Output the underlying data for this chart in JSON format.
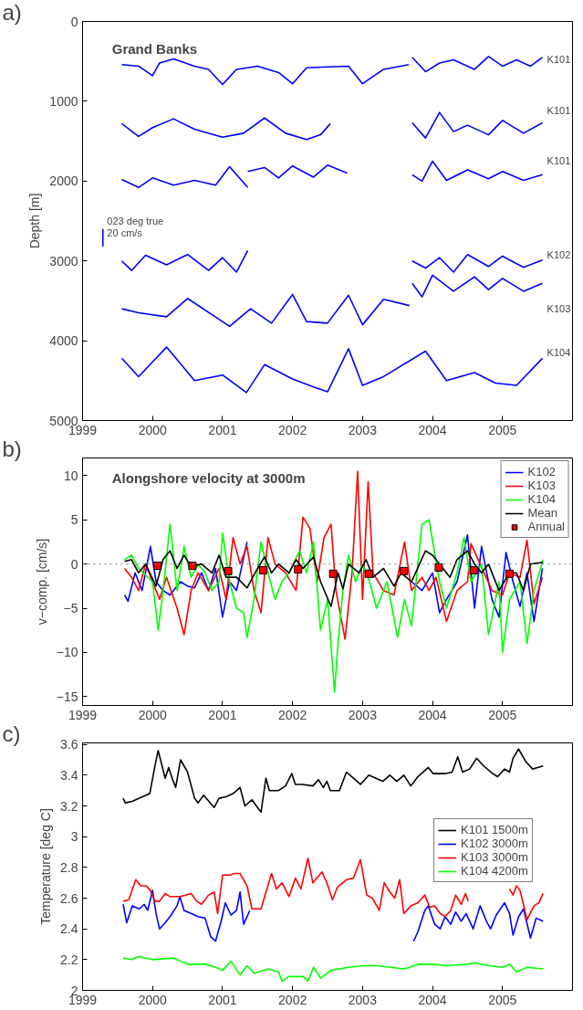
{
  "chart_data": [
    {
      "type": "line",
      "title": "Grand Banks",
      "ylabel": "Depth [m]",
      "xlim": [
        1999,
        2006
      ],
      "ylim": [
        5000,
        0
      ],
      "xticks": [
        1999,
        2000,
        2001,
        2002,
        2003,
        2004,
        2005
      ],
      "yticks": [
        0,
        1000,
        2000,
        3000,
        4000,
        5000
      ],
      "grid": false,
      "annotations": [
        "a)",
        "K101",
        "K101",
        "K101",
        "K102",
        "K103",
        "K104",
        "023 deg true",
        "20 cm/s"
      ],
      "series": [
        {
          "color": "#0000ff",
          "x": [
            1999.56,
            1999.8,
            2000.0,
            2000.1,
            2000.3,
            2000.6,
            2000.8,
            2001.0,
            2001.2,
            2001.5,
            2001.8,
            2002.0,
            2002.2,
            2002.5,
            2002.8,
            2003.0,
            2003.3,
            2003.66
          ],
          "values": [
            540,
            560,
            680,
            520,
            470,
            560,
            600,
            790,
            600,
            560,
            640,
            780,
            580,
            570,
            560,
            780,
            600,
            540
          ]
        },
        {
          "color": "#0000ff",
          "x": [
            2003.71,
            2003.9,
            2004.1,
            2004.3,
            2004.6,
            2004.8,
            2005.0,
            2005.2,
            2005.4,
            2005.57
          ],
          "values": [
            450,
            630,
            520,
            480,
            600,
            440,
            560,
            480,
            560,
            450
          ]
        },
        {
          "color": "#0000ff",
          "x": [
            1999.56,
            1999.8,
            2000.0,
            2000.3,
            2000.6,
            2001.0,
            2001.3,
            2001.6,
            2001.9,
            2002.2,
            2002.4,
            2002.54
          ],
          "values": [
            1280,
            1440,
            1330,
            1220,
            1350,
            1450,
            1400,
            1210,
            1400,
            1480,
            1420,
            1280
          ]
        },
        {
          "color": "#0000ff",
          "x": [
            2003.71,
            2003.9,
            2004.1,
            2004.3,
            2004.5,
            2004.8,
            2005.0,
            2005.3,
            2005.57
          ],
          "values": [
            1270,
            1460,
            1140,
            1380,
            1300,
            1420,
            1240,
            1400,
            1270
          ]
        },
        {
          "color": "#0000ff",
          "x": [
            1999.56,
            1999.8,
            2000.0,
            2000.3,
            2000.6,
            2000.9,
            2001.1,
            2001.36
          ],
          "values": [
            1980,
            2080,
            1960,
            2050,
            1990,
            2050,
            1820,
            2080
          ]
        },
        {
          "color": "#0000ff",
          "x": [
            2001.36,
            2001.6,
            2001.8,
            2002.0,
            2002.3,
            2002.5,
            2002.78
          ],
          "values": [
            1880,
            1830,
            1960,
            1810,
            1950,
            1800,
            1900
          ]
        },
        {
          "color": "#0000ff",
          "x": [
            2003.71,
            2003.85,
            2004.0,
            2004.2,
            2004.5,
            2004.8,
            2005.0,
            2005.3,
            2005.57
          ],
          "values": [
            1920,
            2000,
            1750,
            1990,
            1860,
            1970,
            1880,
            1990,
            1920
          ]
        },
        {
          "color": "#0000ff",
          "x": [
            1999.56,
            1999.7,
            1999.9,
            2000.2,
            2000.5,
            2000.8,
            2001.0,
            2001.2,
            2001.36
          ],
          "values": [
            3000,
            3120,
            2930,
            3050,
            2920,
            3120,
            2960,
            3140,
            2870
          ]
        },
        {
          "color": "#0000ff",
          "x": [
            2003.71,
            2003.9,
            2004.1,
            2004.3,
            2004.5,
            2004.8,
            2005.0,
            2005.3,
            2005.57
          ],
          "values": [
            3000,
            3090,
            2960,
            3140,
            2920,
            3070,
            2940,
            3080,
            2990
          ]
        },
        {
          "color": "#0000ff",
          "x": [
            2003.71,
            2003.85,
            2004.0,
            2004.3,
            2004.6,
            2004.8,
            2005.0,
            2005.3,
            2005.57
          ],
          "values": [
            3280,
            3450,
            3180,
            3380,
            3200,
            3360,
            3220,
            3380,
            3280
          ]
        },
        {
          "color": "#0000ff",
          "x": [
            1999.56,
            1999.8,
            2000.2,
            2000.5,
            2001.1,
            2001.4,
            2001.7,
            2002.0,
            2002.2,
            2002.5,
            2002.8,
            2003.0,
            2003.3,
            2003.67
          ],
          "values": [
            3600,
            3650,
            3700,
            3470,
            3820,
            3600,
            3780,
            3420,
            3760,
            3780,
            3430,
            3800,
            3480,
            3560
          ]
        },
        {
          "color": "#0000ff",
          "x": [
            1999.56,
            1999.8,
            2000.2,
            2000.6,
            2001.0,
            2001.34,
            2001.6,
            2002.0,
            2002.3,
            2002.5,
            2002.8,
            2003.0,
            2003.3,
            2003.9,
            2004.2,
            2004.6,
            2004.9,
            2005.2,
            2005.57
          ],
          "values": [
            4220,
            4450,
            4080,
            4500,
            4430,
            4650,
            4300,
            4480,
            4580,
            4640,
            4100,
            4560,
            4450,
            4130,
            4500,
            4400,
            4530,
            4560,
            4220
          ]
        },
        {
          "color": "#0000ff",
          "x": [
            1999.29,
            1999.29
          ],
          "values": [
            2600,
            2820
          ]
        }
      ]
    },
    {
      "type": "line",
      "title": "Alongshore velocity at 3000m",
      "ylabel": "v−comp. [cm/s]",
      "xlim": [
        1999,
        2006
      ],
      "ylim": [
        -16,
        12
      ],
      "xticks": [
        1999,
        2000,
        2001,
        2002,
        2003,
        2004,
        2005
      ],
      "yticks": [
        {
          "value": -15,
          "label": "−15"
        },
        {
          "value": -10,
          "label": "−10"
        },
        {
          "value": -5,
          "label": "−5"
        },
        0,
        5,
        10
      ],
      "grid": false,
      "legend": "top right",
      "annotations": [
        "b)"
      ],
      "ref_lines": [
        {
          "axis": "y",
          "value": 0,
          "color": "#808080",
          "line_style": "dotted"
        }
      ],
      "series": [
        {
          "name": "K102",
          "color": "#0000ff",
          "x": [
            1999.6,
            1999.65,
            1999.75,
            1999.85,
            1999.97,
            2000.05,
            2000.15,
            2000.25,
            2000.4,
            2000.5,
            2000.6,
            2000.7,
            2000.8,
            2000.9,
            2001.0,
            2001.1,
            2001.2,
            2001.35,
            2002.5,
            2003.7,
            2003.85,
            2004.0,
            2004.1,
            2004.2,
            2004.35,
            2004.5,
            2004.6,
            2004.7,
            2004.85,
            2004.95,
            2005.05,
            2005.15,
            2005.25,
            2005.35,
            2005.45,
            2005.57
          ],
          "values": [
            -3.5,
            -4.2,
            -1,
            -3,
            2,
            -2,
            -3,
            -3.5,
            -2,
            -2.5,
            -2.7,
            -1,
            -3,
            -0.5,
            -6,
            -2,
            -3,
            2.5,
            null,
            -2,
            -3,
            -1,
            -5.5,
            -4,
            -2,
            3.3,
            -5,
            2,
            -4,
            -6,
            1.3,
            -2,
            -4.8,
            -1,
            -6.5,
            -0.5
          ]
        },
        {
          "name": "K103",
          "color": "#ff0000",
          "x": [
            1999.6,
            1999.7,
            1999.8,
            1999.9,
            2000.1,
            2000.2,
            2000.35,
            2000.45,
            2000.55,
            2000.65,
            2000.8,
            2000.95,
            2001.05,
            2001.15,
            2001.25,
            2001.35,
            2001.45,
            2001.55,
            2001.65,
            2001.75,
            2001.9,
            2002.05,
            2002.15,
            2002.25,
            2002.35,
            2002.45,
            2002.55,
            2002.62,
            2002.75,
            2002.85,
            2002.93,
            2003.0,
            2003.08,
            2003.15,
            2003.3,
            2003.45,
            2003.6,
            2003.7,
            2003.85,
            2003.95,
            2004.05,
            2004.2,
            2004.35,
            2004.5,
            2004.55,
            2004.85,
            2005.0,
            2005.1,
            2005.25,
            2005.35,
            2005.45,
            2005.57
          ],
          "values": [
            -0.5,
            -1.5,
            -3,
            0,
            -4,
            -1.5,
            -5,
            -8,
            -3,
            -1,
            -3,
            -0.5,
            -4,
            3,
            0,
            2,
            -3,
            -5.5,
            3,
            0,
            -1,
            -3,
            5.3,
            4,
            -2,
            3,
            4.5,
            -3,
            -8.5,
            -1,
            10.5,
            -4,
            9.3,
            -1,
            -3,
            -3.5,
            2.5,
            -3,
            -1.5,
            -3,
            -1.5,
            -6.5,
            -3,
            -2,
            2.3,
            -3,
            -3.5,
            -1,
            -1.5,
            2.7,
            -4.5,
            -1.5
          ]
        },
        {
          "name": "K104",
          "color": "#00ff00",
          "x": [
            1999.6,
            1999.7,
            1999.8,
            2000.0,
            2000.08,
            2000.15,
            2000.25,
            2000.35,
            2000.45,
            2000.55,
            2000.65,
            2000.75,
            2000.85,
            2000.95,
            2001.0,
            2001.1,
            2001.2,
            2001.3,
            2001.35,
            2001.45,
            2001.55,
            2001.65,
            2001.75,
            2001.85,
            2001.95,
            2002.1,
            2002.2,
            2002.3,
            2002.4,
            2002.5,
            2002.6,
            2002.65,
            2002.72,
            2002.8,
            2002.9,
            2003.0,
            2003.1,
            2003.2,
            2003.35,
            2003.5,
            2003.6,
            2003.7,
            2003.85,
            2003.95,
            2004.1,
            2004.2,
            2004.35,
            2004.45,
            2004.55,
            2004.7,
            2004.8,
            2004.95,
            2005.0,
            2005.1,
            2005.25,
            2005.35,
            2005.45,
            2005.58
          ],
          "values": [
            0.5,
            1,
            -0.5,
            -2,
            -7.5,
            -3,
            4.5,
            -3,
            2,
            -1.5,
            0,
            -1,
            -3,
            -2,
            3.5,
            -2,
            -5,
            -5.5,
            -8.3,
            -4,
            2.5,
            -1,
            -4,
            -2,
            -1,
            1.5,
            -1,
            2.5,
            -7.5,
            -4,
            -14.5,
            -9,
            -3,
            1,
            -2,
            0,
            -2,
            -5,
            -2,
            -8.3,
            -4,
            -7,
            4.5,
            5,
            -2,
            -5,
            -1,
            3,
            -2,
            0,
            -8,
            -2,
            -10,
            -4,
            -2,
            -9,
            -3,
            0.5
          ]
        },
        {
          "name": "Mean",
          "color": "#000000",
          "x": [
            1999.6,
            1999.7,
            1999.8,
            1999.9,
            2000.05,
            2000.15,
            2000.25,
            2000.35,
            2000.45,
            2000.55,
            2000.7,
            2000.85,
            2000.95,
            2001.05,
            2001.2,
            2001.35,
            2001.5,
            2001.6,
            2001.7,
            2001.8,
            2001.95,
            2002.05,
            2002.15,
            2002.3,
            2002.4,
            2002.55,
            2002.65,
            2002.72,
            2002.8,
            2002.95,
            2003.05,
            2003.15,
            2003.3,
            2003.45,
            2003.55,
            2003.7,
            2003.9,
            2004.0,
            2004.15,
            2004.25,
            2004.35,
            2004.5,
            2004.6,
            2004.7,
            2004.8,
            2004.95,
            2005.1,
            2005.2,
            2005.3,
            2005.4,
            2005.58
          ],
          "values": [
            0.3,
            0.5,
            -1,
            0,
            -2.5,
            0.5,
            1.5,
            -0.5,
            1,
            -0.3,
            0,
            -1,
            1,
            -1.5,
            -1.5,
            -2.7,
            -0.5,
            0.8,
            -1,
            0,
            -1,
            0.5,
            -0.5,
            0.8,
            -2,
            -4.8,
            -1,
            -2.8,
            0,
            -1,
            0.5,
            -1.5,
            -0.5,
            -2.5,
            -1,
            -2,
            1.5,
            1,
            -0.5,
            -1.5,
            0.5,
            1.5,
            0,
            -1,
            0,
            -3,
            -1,
            -1,
            -3,
            0,
            0.2
          ]
        },
        {
          "name": "Annual",
          "type": "scatter",
          "marker": "square",
          "color": "#ff0000",
          "x": [
            2000.07,
            2000.57,
            2001.08,
            2001.58,
            2002.08,
            2002.58,
            2003.09,
            2003.59,
            2004.09,
            2004.59,
            2005.1
          ],
          "values": [
            -0.2,
            -0.2,
            -0.8,
            -0.7,
            -0.6,
            -1.1,
            -1.1,
            -0.8,
            -0.4,
            -0.7,
            -1.1
          ]
        }
      ]
    },
    {
      "type": "line",
      "ylabel": "Temperature [deg C]",
      "xlim": [
        1999,
        2006
      ],
      "ylim": [
        2,
        3.61
      ],
      "xticks": [
        1999,
        2000,
        2001,
        2002,
        2003,
        2004,
        2005
      ],
      "yticks": [
        2,
        2.2,
        2.4,
        2.6,
        2.8,
        3,
        3.2,
        3.4,
        3.6
      ],
      "grid": false,
      "legend": "right",
      "annotations": [
        "c)"
      ],
      "series": [
        {
          "name": "K101 1500m",
          "color": "#000000",
          "x": [
            1999.58,
            1999.61,
            1999.71,
            1999.81,
            1999.96,
            2000.03,
            2000.08,
            2000.13,
            2000.18,
            2000.23,
            2000.28,
            2000.33,
            2000.4,
            2000.5,
            2000.6,
            2000.65,
            2000.73,
            2000.88,
            2000.95,
            2001.05,
            2001.15,
            2001.25,
            2001.32,
            2001.42,
            2001.5,
            2001.55,
            2001.62,
            2001.67,
            2001.8,
            2001.9,
            2001.99,
            2002.04,
            2002.14,
            2002.29,
            2002.37,
            2002.44,
            2002.49,
            2002.54,
            2002.67,
            2002.77,
            2002.87,
            2002.97,
            2003.09,
            2003.19,
            2003.29,
            2003.39,
            2003.49,
            2003.59,
            2003.69,
            2003.79,
            2003.94,
            2004.01,
            2004.18,
            2004.28,
            2004.36,
            2004.43,
            2004.53,
            2004.63,
            2004.73,
            2004.86,
            2004.93,
            2005.03,
            2005.1,
            2005.15,
            2005.23,
            2005.33,
            2005.43,
            2005.5,
            2005.58
          ],
          "values": [
            3.25,
            3.22,
            3.23,
            3.25,
            3.28,
            3.45,
            3.56,
            3.47,
            3.38,
            3.45,
            3.38,
            3.32,
            3.5,
            3.42,
            3.25,
            3.22,
            3.27,
            3.19,
            3.25,
            3.26,
            3.28,
            3.32,
            3.2,
            3.24,
            3.19,
            3.16,
            3.38,
            3.3,
            3.3,
            3.33,
            3.41,
            3.34,
            3.34,
            3.33,
            3.37,
            3.32,
            3.36,
            3.3,
            3.3,
            3.42,
            3.38,
            3.34,
            3.4,
            3.38,
            3.36,
            3.4,
            3.36,
            3.4,
            3.33,
            3.39,
            3.45,
            3.41,
            3.41,
            3.42,
            3.52,
            3.42,
            3.44,
            3.51,
            3.46,
            3.41,
            3.39,
            3.44,
            3.42,
            3.51,
            3.57,
            3.49,
            3.44,
            3.45,
            3.46
          ]
        },
        {
          "name": "K102 3000m",
          "color": "#0000ff",
          "x": [
            1999.58,
            1999.63,
            1999.71,
            1999.81,
            1999.88,
            1999.93,
            2000.0,
            2000.05,
            2000.1,
            2000.18,
            2000.25,
            2000.35,
            2000.39,
            2000.45,
            2000.55,
            2000.65,
            2000.75,
            2000.83,
            2000.9,
            2000.98,
            2001.04,
            2001.12,
            2001.2,
            2001.25,
            2001.3,
            2001.39,
            2002.5,
            2003.73,
            2003.79,
            2003.89,
            2003.94,
            2004.03,
            2004.11,
            2004.18,
            2004.26,
            2004.33,
            2004.41,
            2004.48,
            2004.58,
            2004.68,
            2004.78,
            2004.83,
            2004.91,
            2005.03,
            2005.1,
            2005.15,
            2005.23,
            2005.3,
            2005.4,
            2005.48,
            2005.58
          ],
          "values": [
            2.56,
            2.44,
            2.55,
            2.53,
            2.56,
            2.52,
            2.65,
            2.5,
            2.4,
            2.44,
            2.48,
            2.55,
            2.61,
            2.52,
            2.5,
            2.48,
            2.47,
            2.35,
            2.32,
            2.45,
            2.57,
            2.49,
            2.52,
            2.64,
            2.43,
            2.52,
            null,
            2.32,
            2.38,
            2.52,
            2.55,
            2.43,
            2.4,
            2.48,
            2.43,
            2.51,
            2.45,
            2.5,
            2.4,
            2.55,
            2.44,
            2.4,
            2.49,
            2.57,
            2.5,
            2.36,
            2.48,
            2.53,
            2.34,
            2.47,
            2.45
          ]
        },
        {
          "name": "K103 3000m",
          "color": "#ff0000",
          "x": [
            1999.58,
            1999.66,
            1999.76,
            1999.83,
            1999.91,
            1999.97,
            2000.03,
            2000.1,
            2000.18,
            2000.25,
            2000.4,
            2000.55,
            2000.63,
            2000.7,
            2000.8,
            2000.88,
            2000.93,
            2001.0,
            2001.1,
            2001.17,
            2001.25,
            2001.35,
            2001.42,
            2001.55,
            2001.7,
            2001.77,
            2001.85,
            2001.95,
            2002.04,
            2002.12,
            2002.22,
            2002.29,
            2002.42,
            2002.49,
            2002.57,
            2002.64,
            2002.77,
            2002.87,
            2002.97,
            2003.06,
            2003.14,
            2003.24,
            2003.31,
            2003.39,
            2003.46,
            2003.53,
            2003.59,
            2003.69,
            2003.79,
            2003.89,
            2003.96,
            2004.03,
            2004.11,
            2004.18,
            2004.26,
            2004.33,
            2004.41,
            2004.47,
            2004.51,
            2004.9,
            2005.1,
            2005.15,
            2005.2,
            2005.25,
            2005.35,
            2005.45,
            2005.52,
            2005.58
          ],
          "values": [
            2.58,
            2.59,
            2.72,
            2.68,
            2.68,
            2.65,
            2.58,
            2.58,
            2.63,
            2.61,
            2.61,
            2.63,
            2.58,
            2.56,
            2.62,
            2.64,
            2.5,
            2.75,
            2.75,
            2.76,
            2.76,
            2.68,
            2.53,
            2.53,
            2.76,
            2.66,
            2.7,
            2.61,
            2.73,
            2.66,
            2.86,
            2.7,
            2.77,
            2.7,
            2.59,
            2.67,
            2.72,
            2.73,
            2.85,
            2.62,
            2.6,
            2.52,
            2.7,
            2.64,
            2.6,
            2.72,
            2.5,
            2.55,
            2.57,
            2.62,
            2.54,
            2.55,
            2.5,
            2.48,
            2.52,
            2.62,
            2.56,
            2.63,
            2.58,
            null,
            2.66,
            2.62,
            2.68,
            2.65,
            2.46,
            2.55,
            2.57,
            2.63
          ]
        },
        {
          "name": "K104 4200m",
          "color": "#00ff00",
          "x": [
            1999.58,
            1999.7,
            1999.8,
            2000.0,
            2000.3,
            2000.5,
            2000.75,
            2000.9,
            2001.0,
            2001.12,
            2001.25,
            2001.35,
            2001.45,
            2001.65,
            2001.8,
            2001.85,
            2001.95,
            2002.15,
            2002.22,
            2002.3,
            2002.4,
            2002.55,
            2002.8,
            2003.0,
            2003.2,
            2003.4,
            2003.6,
            2003.8,
            2004.0,
            2004.2,
            2004.5,
            2004.6,
            2004.8,
            2005.0,
            2005.1,
            2005.2,
            2005.35,
            2005.58
          ],
          "values": [
            2.21,
            2.2,
            2.22,
            2.2,
            2.21,
            2.17,
            2.17,
            2.15,
            2.13,
            2.19,
            2.1,
            2.16,
            2.11,
            2.14,
            2.12,
            2.06,
            2.09,
            2.09,
            2.06,
            2.15,
            2.08,
            2.13,
            2.15,
            2.16,
            2.16,
            2.15,
            2.14,
            2.17,
            2.17,
            2.16,
            2.17,
            2.18,
            2.16,
            2.15,
            2.17,
            2.12,
            2.15,
            2.14
          ]
        }
      ]
    }
  ]
}
